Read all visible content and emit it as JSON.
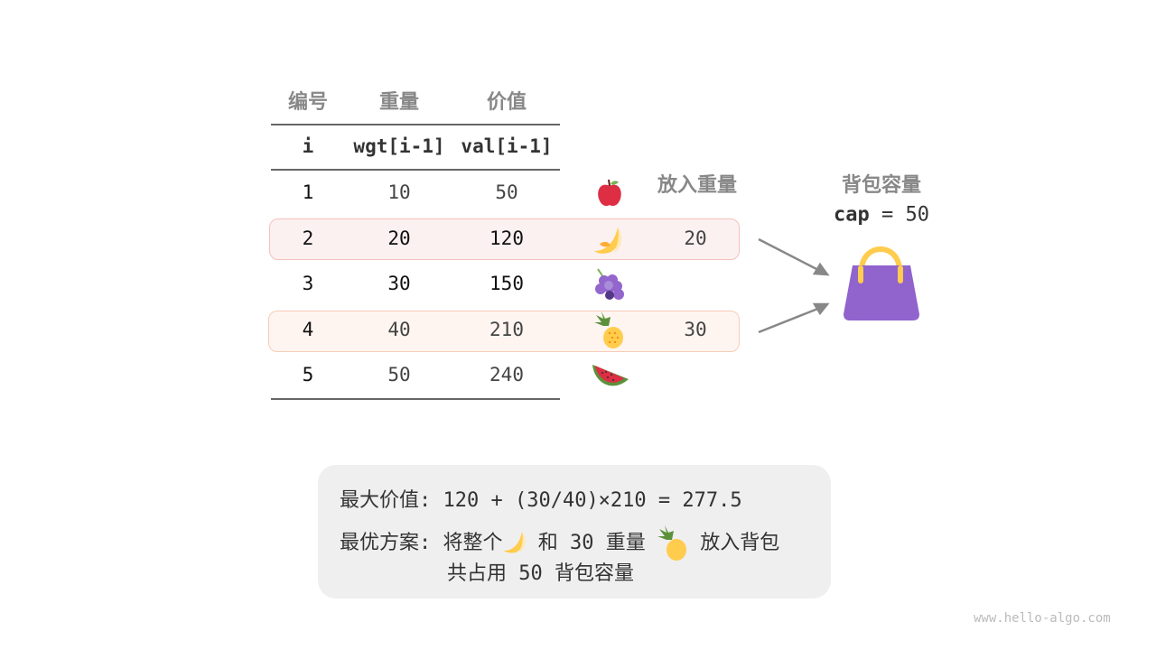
{
  "table": {
    "headers_cn": [
      "编号",
      "重量",
      "价值"
    ],
    "headers_code": [
      "i",
      "wgt[i-1]",
      "val[i-1]"
    ],
    "rows": [
      {
        "i": "1",
        "wgt": "10",
        "val": "50",
        "fruit": "apple-icon",
        "put": ""
      },
      {
        "i": "2",
        "wgt": "20",
        "val": "120",
        "fruit": "banana-icon",
        "put": "20"
      },
      {
        "i": "3",
        "wgt": "30",
        "val": "150",
        "fruit": "grapes-icon",
        "put": ""
      },
      {
        "i": "4",
        "wgt": "40",
        "val": "210",
        "fruit": "pineapple-icon",
        "put": "30"
      },
      {
        "i": "5",
        "wgt": "50",
        "val": "240",
        "fruit": "watermelon-icon",
        "put": ""
      }
    ],
    "put_header": "放入重量"
  },
  "bag": {
    "title": "背包容量",
    "cap_label": "cap",
    "cap_eq": "= 50",
    "icon": "handbag-icon",
    "color": "#9063cd"
  },
  "summary": {
    "max_label": "最大价值:",
    "max_formula": "120 + (30/40)×210 = 277.5",
    "plan_label": "最优方案:",
    "plan_p1": "将整个",
    "plan_p2": "和 30 重量",
    "plan_p3": "放入背包",
    "plan_line2": "共占用 50 背包容量"
  },
  "colors": {
    "row2_fill": "#fcf1f1",
    "row2_border": "#f5c0bb",
    "row4_fill": "#fef5f1",
    "row4_border": "#f8cbb8"
  },
  "watermark": "www.hello-algo.com"
}
